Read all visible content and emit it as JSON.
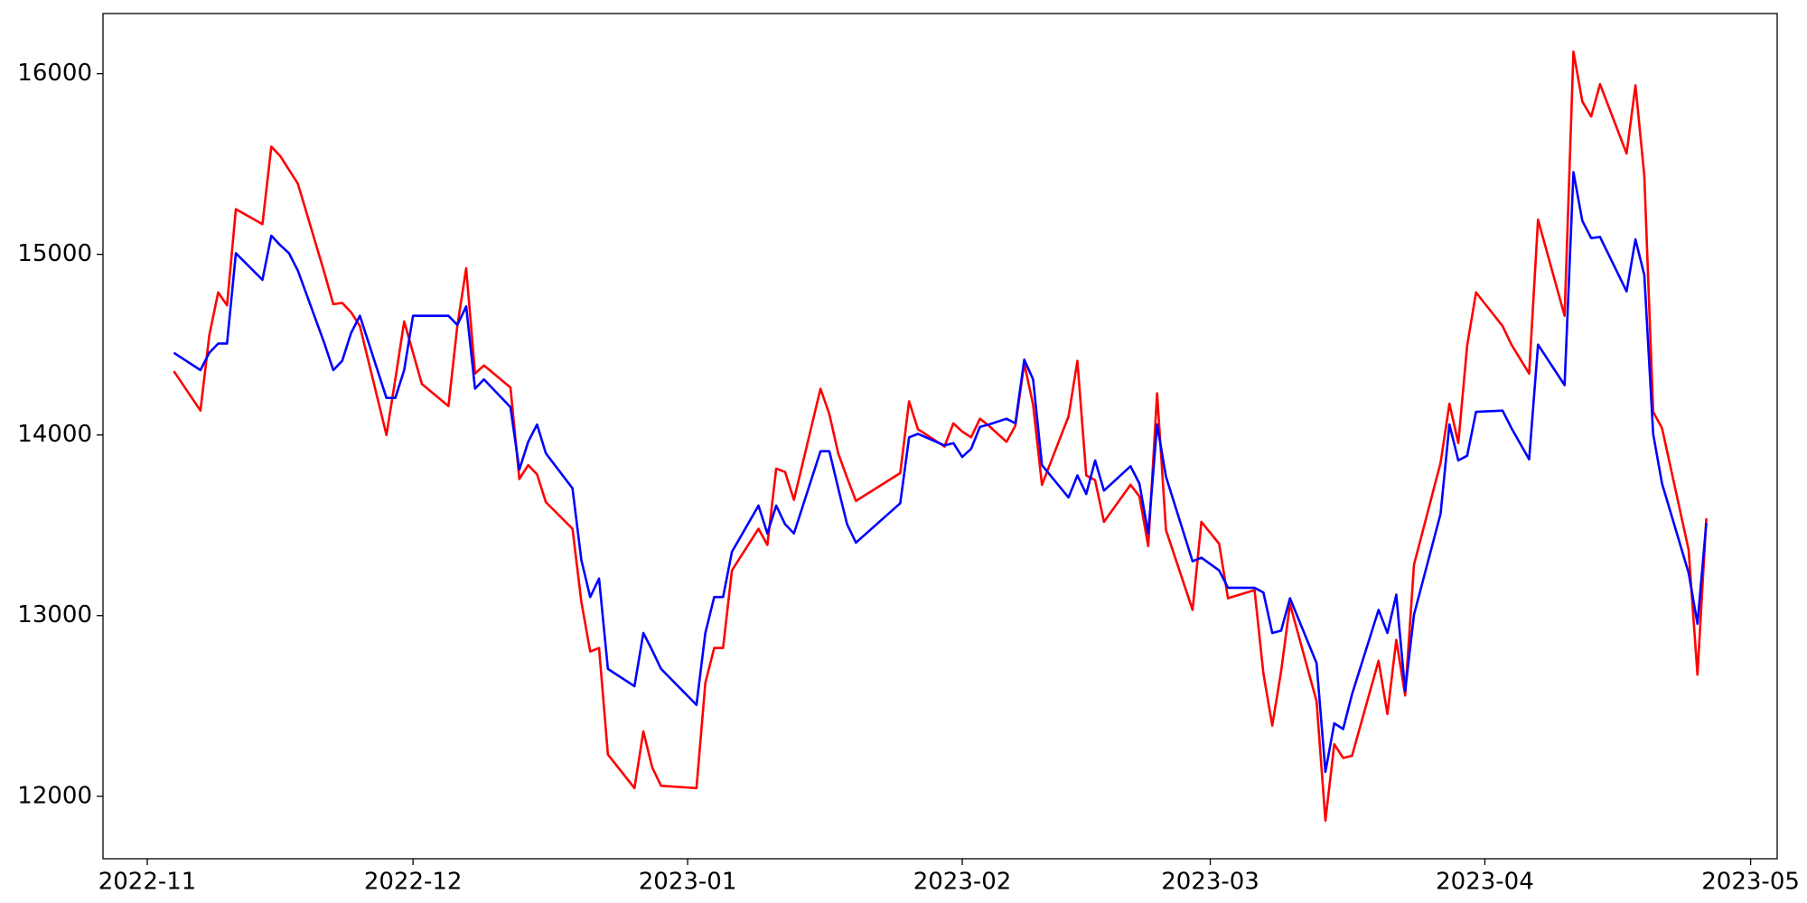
{
  "chart_data": {
    "type": "line",
    "x": [
      "2022-11-04",
      "2022-11-07",
      "2022-11-08",
      "2022-11-09",
      "2022-11-10",
      "2022-11-11",
      "2022-11-14",
      "2022-11-15",
      "2022-11-16",
      "2022-11-17",
      "2022-11-18",
      "2022-11-21",
      "2022-11-22",
      "2022-11-23",
      "2022-11-24",
      "2022-11-25",
      "2022-11-28",
      "2022-11-29",
      "2022-11-30",
      "2022-12-01",
      "2022-12-02",
      "2022-12-05",
      "2022-12-06",
      "2022-12-07",
      "2022-12-08",
      "2022-12-09",
      "2022-12-12",
      "2022-12-13",
      "2022-12-14",
      "2022-12-15",
      "2022-12-16",
      "2022-12-19",
      "2022-12-20",
      "2022-12-21",
      "2022-12-22",
      "2022-12-23",
      "2022-12-26",
      "2022-12-27",
      "2022-12-28",
      "2022-12-29",
      "2023-01-02",
      "2023-01-03",
      "2023-01-04",
      "2023-01-05",
      "2023-01-06",
      "2023-01-09",
      "2023-01-10",
      "2023-01-11",
      "2023-01-12",
      "2023-01-13",
      "2023-01-16",
      "2023-01-17",
      "2023-01-18",
      "2023-01-19",
      "2023-01-20",
      "2023-01-25",
      "2023-01-26",
      "2023-01-27",
      "2023-01-30",
      "2023-01-31",
      "2023-02-01",
      "2023-02-02",
      "2023-02-03",
      "2023-02-04",
      "2023-02-06",
      "2023-02-07",
      "2023-02-08",
      "2023-02-09",
      "2023-02-10",
      "2023-02-13",
      "2023-02-14",
      "2023-02-15",
      "2023-02-16",
      "2023-02-17",
      "2023-02-20",
      "2023-02-21",
      "2023-02-22",
      "2023-02-23",
      "2023-02-24",
      "2023-02-27",
      "2023-02-28",
      "2023-03-02",
      "2023-03-03",
      "2023-03-06",
      "2023-03-07",
      "2023-03-08",
      "2023-03-09",
      "2023-03-10",
      "2023-03-13",
      "2023-03-14",
      "2023-03-15",
      "2023-03-16",
      "2023-03-17",
      "2023-03-20",
      "2023-03-21",
      "2023-03-22",
      "2023-03-23",
      "2023-03-24",
      "2023-03-27",
      "2023-03-28",
      "2023-03-29",
      "2023-03-30",
      "2023-03-31",
      "2023-04-03",
      "2023-04-04",
      "2023-04-06",
      "2023-04-07",
      "2023-04-10",
      "2023-04-11",
      "2023-04-12",
      "2023-04-13",
      "2023-04-14",
      "2023-04-17",
      "2023-04-18",
      "2023-04-19",
      "2023-04-20",
      "2023-04-21",
      "2023-04-24",
      "2023-04-25",
      "2023-04-26"
    ],
    "series": [
      {
        "color": "#ff0000",
        "values": [
          14353,
          14135,
          14551,
          14789,
          14718,
          15250,
          15167,
          15596,
          15545,
          15468,
          15391,
          14897,
          14724,
          14731,
          14680,
          14603,
          14000,
          14308,
          14628,
          14455,
          14282,
          14160,
          14603,
          14923,
          14340,
          14385,
          14263,
          13756,
          13833,
          13782,
          13628,
          13481,
          13077,
          12801,
          12821,
          12231,
          12045,
          12359,
          12160,
          12058,
          12045,
          12628,
          12821,
          12821,
          13250,
          13481,
          13391,
          13814,
          13795,
          13641,
          14256,
          14115,
          13898,
          13763,
          13635,
          13789,
          14186,
          14032,
          13936,
          14064,
          14019,
          13987,
          14090,
          14051,
          13962,
          14051,
          14397,
          14167,
          13724,
          14103,
          14410,
          13776,
          13750,
          13519,
          13724,
          13660,
          13385,
          14231,
          13474,
          13032,
          13519,
          13398,
          13096,
          13141,
          12680,
          12391,
          12692,
          13064,
          12526,
          11865,
          12288,
          12212,
          12224,
          12750,
          12455,
          12866,
          12558,
          13282,
          13846,
          14173,
          13955,
          14494,
          14789,
          14603,
          14500,
          14340,
          15192,
          14660,
          16122,
          15846,
          15763,
          15942,
          15558,
          15936,
          15436,
          14128,
          14038,
          13365,
          12673,
          13539
        ]
      },
      {
        "color": "#0000ff",
        "values": [
          14455,
          14359,
          14455,
          14506,
          14506,
          15006,
          14859,
          15103,
          15051,
          15006,
          14910,
          14506,
          14359,
          14410,
          14564,
          14660,
          14205,
          14205,
          14359,
          14660,
          14660,
          14660,
          14609,
          14712,
          14256,
          14308,
          14154,
          13808,
          13962,
          14058,
          13898,
          13705,
          13308,
          13103,
          13205,
          12705,
          12609,
          12904,
          12808,
          12705,
          12506,
          12904,
          13103,
          13103,
          13353,
          13609,
          13455,
          13609,
          13506,
          13455,
          13910,
          13910,
          13705,
          13506,
          13404,
          13622,
          13987,
          14006,
          13942,
          13955,
          13878,
          13923,
          14045,
          14058,
          14090,
          14064,
          14417,
          14308,
          13833,
          13654,
          13776,
          13673,
          13859,
          13692,
          13827,
          13731,
          13455,
          14058,
          13769,
          13301,
          13321,
          13250,
          13154,
          13154,
          13128,
          12904,
          12917,
          13096,
          12737,
          12135,
          12404,
          12372,
          12564,
          13032,
          12904,
          13116,
          12583,
          13006,
          13564,
          14058,
          13859,
          13885,
          14128,
          14135,
          14038,
          13865,
          14500,
          14276,
          15455,
          15186,
          15090,
          15096,
          14795,
          15083,
          14885,
          14006,
          13731,
          13237,
          12955,
          13513
        ]
      }
    ],
    "xlim": [
      "2022-10-27",
      "2023-05-04"
    ],
    "xticks": [
      {
        "value": "2022-11-01",
        "label": "2022-11"
      },
      {
        "value": "2022-12-01",
        "label": "2022-12"
      },
      {
        "value": "2023-01-01",
        "label": "2023-01"
      },
      {
        "value": "2023-02-01",
        "label": "2023-02"
      },
      {
        "value": "2023-03-01",
        "label": "2023-03"
      },
      {
        "value": "2023-04-01",
        "label": "2023-04"
      },
      {
        "value": "2023-05-01",
        "label": "2023-05"
      }
    ],
    "ylim": [
      11654,
      16333
    ],
    "yticks": [
      12000,
      13000,
      14000,
      15000,
      16000
    ],
    "grid": false
  }
}
